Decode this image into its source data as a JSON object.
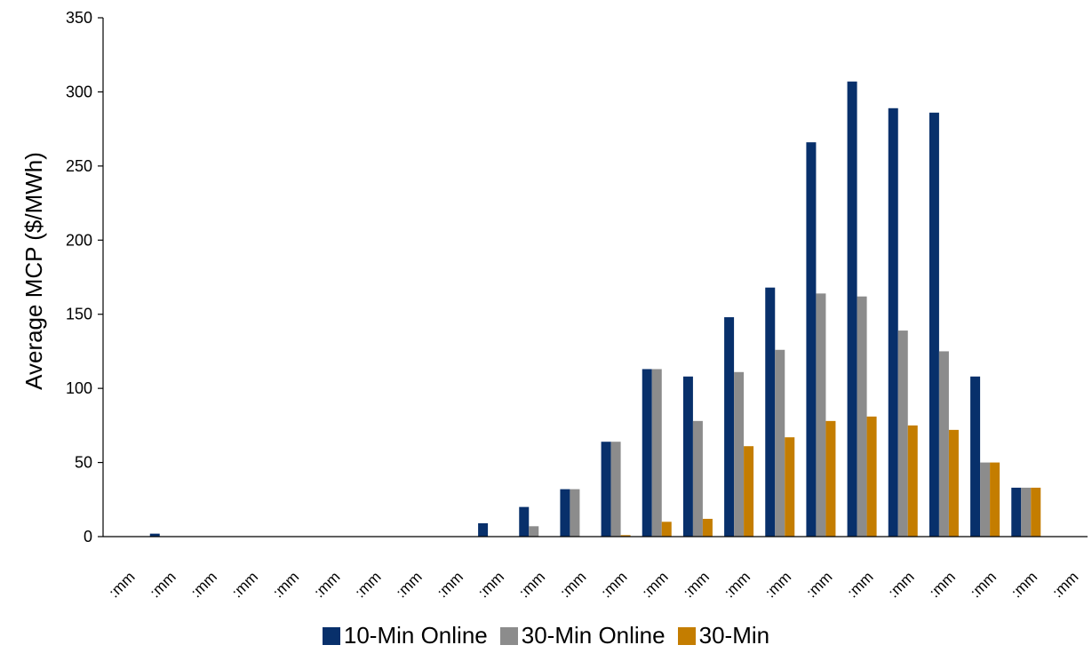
{
  "chart_data": {
    "type": "bar",
    "title": "",
    "xlabel": "",
    "ylabel": "Average MCP ($/MWh)",
    "ylim": [
      0,
      350
    ],
    "yticks": [
      0,
      50,
      100,
      150,
      200,
      250,
      300,
      350
    ],
    "categories": [
      ":mm",
      ":mm",
      ":mm",
      ":mm",
      ":mm",
      ":mm",
      ":mm",
      ":mm",
      ":mm",
      ":mm",
      ":mm",
      ":mm",
      ":mm",
      ":mm",
      ":mm",
      ":mm",
      ":mm",
      ":mm",
      ":mm",
      ":mm",
      ":mm",
      ":mm",
      ":mm",
      ":mm"
    ],
    "series": [
      {
        "name": "10-Min Online",
        "color": "#08306b",
        "values": [
          0,
          2,
          0,
          0,
          0,
          0,
          0,
          0,
          0,
          9,
          20,
          32,
          64,
          113,
          108,
          148,
          168,
          266,
          307,
          289,
          286,
          108,
          33,
          0
        ]
      },
      {
        "name": "30-Min Online",
        "color": "#8c8c8c",
        "values": [
          0,
          0,
          0,
          0,
          0,
          0,
          0,
          0,
          0,
          0,
          7,
          32,
          64,
          113,
          78,
          111,
          126,
          164,
          162,
          139,
          125,
          50,
          33,
          0
        ]
      },
      {
        "name": "30-Min",
        "color": "#c47d00",
        "values": [
          0,
          0,
          0,
          0,
          0,
          0,
          0,
          0,
          0,
          0,
          0,
          0,
          1,
          10,
          12,
          61,
          67,
          78,
          81,
          75,
          72,
          50,
          33,
          0
        ]
      }
    ],
    "legend_position": "bottom",
    "grid": false
  }
}
